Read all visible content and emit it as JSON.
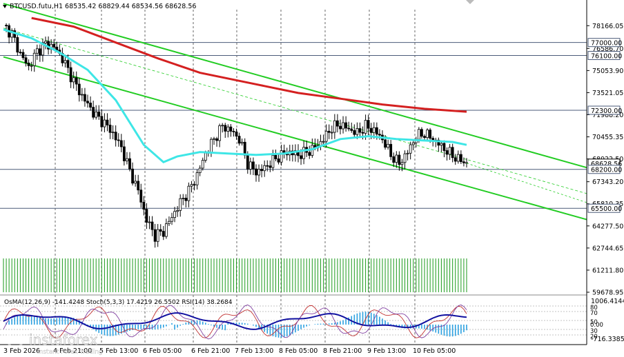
{
  "header": {
    "symbol_line": "BTCUSD.futu,H1  68535.42 68829.44 68534.56 68628.56"
  },
  "indicator_header": {
    "text": "OsMA(12,26,9) -141.4248  Stoch(5,3,3) 17.4219 26.5502  RSI(14) 38.2684"
  },
  "colors": {
    "background": "#ffffff",
    "candle": "#000000",
    "ema_fast": "#3ee6e6",
    "ema_slow": "#d42020",
    "channel": "#22cc22",
    "level_line": "#4a5a78",
    "volume": "#1a9a1a",
    "osma": "#2aa0e0",
    "stoch_main": "#1010a0",
    "stoch_signal": "#c03030",
    "rsi": "#8040a0",
    "price_tag_bg": "#e8e8e8"
  },
  "price_axis": {
    "ticks": [
      "78166.05",
      "76586.70",
      "75053.90",
      "73521.05",
      "71988.20",
      "70455.35",
      "68922.50",
      "67343.20",
      "65810.35",
      "64277.50",
      "62744.65",
      "61211.80",
      "59678.95"
    ]
  },
  "price_tags": [
    "77000.00",
    "76100.00",
    "72300.00",
    "68628.56",
    "68200.00",
    "65500.00"
  ],
  "indicator_axis": {
    "top": "1006.4144",
    "bottom": "-716.3385",
    "levels": [
      "80",
      "70",
      "50",
      "30",
      "20",
      "0.00"
    ]
  },
  "time_axis": {
    "labels": [
      "3 Feb 2026",
      "4 Feb 21:00",
      "5 Feb 13:00",
      "6 Feb 05:00",
      "6 Feb 21:00",
      "7 Feb 13:00",
      "8 Feb 05:00",
      "8 Feb 21:00",
      "9 Feb 13:00",
      "10 Feb 05:00"
    ]
  },
  "watermark": {
    "brand": "instaforex",
    "tagline": "Instant Forex Trading"
  },
  "chart_data": {
    "type": "candlestick",
    "timeframe": "H1",
    "symbol": "BTCUSD.futu",
    "last_bar": {
      "open": 68535.42,
      "high": 68829.44,
      "low": 68534.56,
      "close": 68628.56
    },
    "ylim": [
      59678.95,
      78800
    ],
    "horizontal_levels": [
      77000,
      76100,
      72300,
      68200,
      65500
    ],
    "close_path": [
      [
        0,
        78200
      ],
      [
        3,
        77600
      ],
      [
        6,
        76200
      ],
      [
        9,
        75300
      ],
      [
        12,
        76400
      ],
      [
        15,
        76900
      ],
      [
        18,
        76700
      ],
      [
        21,
        75900
      ],
      [
        24,
        74700
      ],
      [
        27,
        73600
      ],
      [
        30,
        72700
      ],
      [
        33,
        71900
      ],
      [
        36,
        71400
      ],
      [
        39,
        70700
      ],
      [
        42,
        69700
      ],
      [
        45,
        68100
      ],
      [
        48,
        66700
      ],
      [
        51,
        64700
      ],
      [
        54,
        63600
      ],
      [
        57,
        63900
      ],
      [
        60,
        64900
      ],
      [
        63,
        65900
      ],
      [
        66,
        66700
      ],
      [
        69,
        67800
      ],
      [
        72,
        69300
      ],
      [
        75,
        70300
      ],
      [
        78,
        71200
      ],
      [
        81,
        70900
      ],
      [
        84,
        70300
      ],
      [
        87,
        68600
      ],
      [
        90,
        68000
      ],
      [
        93,
        68300
      ],
      [
        96,
        68800
      ],
      [
        99,
        69200
      ],
      [
        102,
        69400
      ],
      [
        105,
        69200
      ],
      [
        108,
        69400
      ],
      [
        111,
        69700
      ],
      [
        114,
        70300
      ],
      [
        117,
        71100
      ],
      [
        120,
        71300
      ],
      [
        123,
        71000
      ],
      [
        126,
        70700
      ],
      [
        129,
        71200
      ],
      [
        132,
        70900
      ],
      [
        135,
        70300
      ],
      [
        138,
        69200
      ],
      [
        141,
        68600
      ],
      [
        144,
        69400
      ],
      [
        147,
        70500
      ],
      [
        150,
        70700
      ],
      [
        153,
        70300
      ],
      [
        156,
        69800
      ],
      [
        159,
        69300
      ],
      [
        162,
        68900
      ],
      [
        165,
        68628.56
      ]
    ],
    "indicators": {
      "ema_fast_path": [
        [
          0,
          77900
        ],
        [
          10,
          77300
        ],
        [
          20,
          76300
        ],
        [
          30,
          75100
        ],
        [
          40,
          73000
        ],
        [
          50,
          69900
        ],
        [
          57,
          68700
        ],
        [
          62,
          69100
        ],
        [
          70,
          69400
        ],
        [
          80,
          69300
        ],
        [
          90,
          69200
        ],
        [
          100,
          69300
        ],
        [
          110,
          69600
        ],
        [
          120,
          70300
        ],
        [
          130,
          70500
        ],
        [
          140,
          70300
        ],
        [
          150,
          70200
        ],
        [
          160,
          70100
        ],
        [
          165,
          69900
        ]
      ],
      "ema_slow_path": [
        [
          10,
          78700
        ],
        [
          25,
          78100
        ],
        [
          40,
          77000
        ],
        [
          55,
          75900
        ],
        [
          70,
          74900
        ],
        [
          90,
          74100
        ],
        [
          105,
          73500
        ],
        [
          120,
          73100
        ],
        [
          135,
          72700
        ],
        [
          150,
          72400
        ],
        [
          165,
          72200
        ]
      ],
      "channel_upper": [
        [
          0,
          79700
        ],
        [
          210,
          68200
        ]
      ],
      "channel_lower": [
        [
          0,
          76000
        ],
        [
          210,
          64600
        ]
      ],
      "channel_middle": [
        [
          0,
          78000
        ],
        [
          210,
          66400
        ]
      ],
      "osma": {
        "last": -141.4248,
        "range": [
          -716.3385,
          1006.4144
        ]
      },
      "stochastic": {
        "k": 17.4219,
        "d": 26.5502,
        "params": "5,3,3"
      },
      "rsi": {
        "value": 38.2684,
        "period": 14
      }
    }
  }
}
